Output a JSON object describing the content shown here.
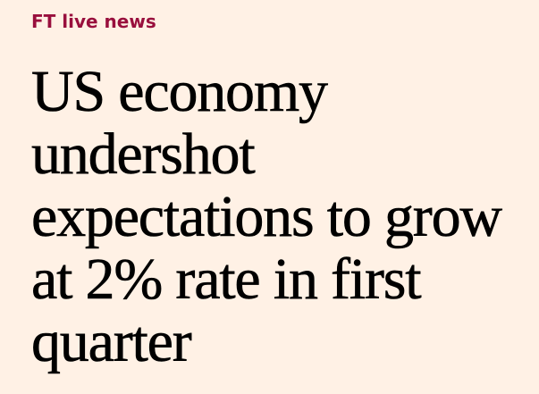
{
  "article": {
    "topic_tag": "FT live news",
    "headline": "US economy undershot expectations to grow at 2% rate in first quarter"
  },
  "colors": {
    "background": "#fff1e5",
    "topic_tag": "#990f3d",
    "headline": "#000000"
  }
}
